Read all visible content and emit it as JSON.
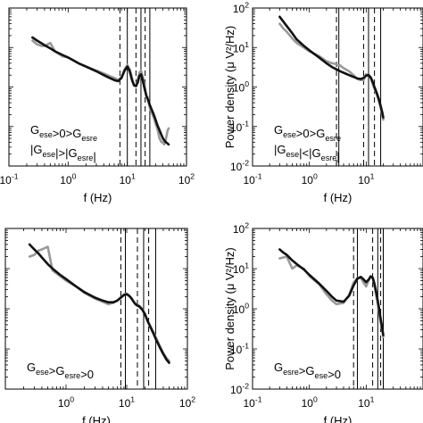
{
  "chart_data": [
    {
      "type": "line",
      "panel": "top-left",
      "scale": "log-log",
      "xlabel": "f (Hz)",
      "ylabel": "",
      "xlim": [
        0.1,
        100
      ],
      "ylim": [
        0.01,
        100
      ],
      "xtick_labels": [
        {
          "value": 0.1,
          "base": "10",
          "exp": "-1"
        },
        {
          "value": 1,
          "base": "10",
          "exp": "0"
        },
        {
          "value": 10,
          "base": "10",
          "exp": "1"
        },
        {
          "value": 100,
          "base": "10",
          "exp": "2"
        }
      ],
      "ytick_labels": [],
      "annotation": [
        "G_{ese}>0>G_{esre}",
        "|G_{ese}|>|G_{esre}|"
      ],
      "vlines_dashed": [
        7.5,
        14,
        20
      ],
      "vlines_solid": [
        10,
        17,
        24
      ],
      "series": [
        {
          "color": "#999999",
          "x": [
            0.25,
            0.3,
            0.35,
            0.4,
            0.5,
            0.6,
            0.8,
            1,
            1.5,
            2,
            3,
            4,
            5,
            6,
            7,
            8,
            9,
            10,
            11,
            12,
            13,
            14,
            15,
            16,
            17,
            18,
            19,
            20,
            21,
            22,
            23,
            24,
            26,
            28,
            30,
            32,
            35,
            38,
            40,
            42,
            45,
            48,
            50
          ],
          "y": [
            15,
            12,
            11,
            11,
            13,
            8,
            6,
            5.6,
            4,
            3.3,
            2.6,
            2.2,
            1.9,
            1.7,
            1.5,
            1.8,
            2.8,
            3.6,
            2.8,
            1.7,
            1.1,
            1.1,
            1.5,
            2.3,
            2.6,
            2.0,
            1.4,
            0.9,
            0.6,
            0.55,
            0.4,
            0.3,
            0.22,
            0.17,
            0.12,
            0.09,
            0.05,
            0.04,
            0.04,
            0.035,
            0.05,
            0.08,
            0.09
          ]
        },
        {
          "color": "#111111",
          "x": [
            0.25,
            0.3,
            0.35,
            0.4,
            0.5,
            0.6,
            0.8,
            1,
            1.5,
            2,
            3,
            4,
            5,
            6,
            7,
            8,
            9,
            10,
            11,
            12,
            13,
            14,
            15,
            16,
            17,
            18,
            19,
            20,
            21,
            22,
            23,
            24,
            26,
            28,
            30,
            32,
            35,
            38,
            40,
            42,
            45,
            48,
            50
          ],
          "y": [
            18,
            15,
            13,
            11.5,
            9.5,
            8,
            6.5,
            5.6,
            4,
            3.3,
            2.5,
            2.0,
            1.7,
            1.5,
            1.4,
            1.7,
            2.6,
            3.3,
            2.5,
            1.5,
            1.1,
            1.05,
            1.3,
            1.9,
            2.1,
            1.6,
            1.1,
            0.8,
            0.6,
            0.5,
            0.42,
            0.35,
            0.26,
            0.2,
            0.15,
            0.11,
            0.08,
            0.06,
            0.05,
            0.045,
            0.04,
            0.037,
            0.035
          ]
        }
      ]
    },
    {
      "type": "line",
      "panel": "top-right",
      "scale": "log-log",
      "xlabel": "f (Hz)",
      "ylabel": "Power density (μ V²/Hz)",
      "xlim": [
        0.1,
        100
      ],
      "ylim": [
        0.01,
        100
      ],
      "xtick_labels": [
        {
          "value": 0.1,
          "base": "10",
          "exp": "-1"
        },
        {
          "value": 1,
          "base": "10",
          "exp": "0"
        },
        {
          "value": 10,
          "base": "10",
          "exp": "1"
        }
      ],
      "ytick_labels": [
        {
          "value": 100,
          "base": "10",
          "exp": "2"
        },
        {
          "value": 10,
          "base": "10",
          "exp": "1"
        },
        {
          "value": 1,
          "base": "10",
          "exp": "0"
        },
        {
          "value": 0.1,
          "base": "10",
          "exp": "-1"
        },
        {
          "value": 0.01,
          "base": "10",
          "exp": "-2"
        }
      ],
      "annotation": [
        "G_{ese}>0>G_{esre}",
        "|G_{ese}|<|G_{esre}|"
      ],
      "vlines_dashed": [
        3,
        9,
        14
      ],
      "vlines_solid": [
        3.3,
        11,
        18
      ],
      "series": [
        {
          "color": "#999999",
          "x": [
            0.3,
            0.35,
            0.4,
            0.5,
            0.6,
            0.8,
            1,
            1.5,
            2,
            2.5,
            3,
            3.5,
            4,
            5,
            6,
            7,
            8,
            9,
            10,
            11,
            12,
            13,
            14,
            15,
            16,
            17,
            18,
            19,
            20
          ],
          "y": [
            40,
            30,
            25,
            17,
            13,
            10,
            8,
            6,
            4.5,
            4.0,
            3.8,
            3.5,
            3.0,
            2.5,
            2.0,
            1.6,
            1.5,
            1.5,
            2.1,
            2.0,
            1.7,
            1.2,
            0.9,
            0.7,
            0.55,
            0.4,
            0.3,
            0.2,
            0.15
          ]
        },
        {
          "color": "#111111",
          "x": [
            0.3,
            0.35,
            0.4,
            0.5,
            0.6,
            0.8,
            1,
            1.5,
            2,
            2.5,
            3,
            3.5,
            4,
            5,
            6,
            7,
            8,
            9,
            10,
            11,
            12,
            13,
            14,
            15,
            16,
            17,
            18,
            19,
            20
          ],
          "y": [
            60,
            45,
            35,
            23,
            16,
            11,
            8.5,
            5.5,
            4.0,
            3.2,
            2.8,
            2.5,
            2.3,
            2.0,
            1.8,
            1.65,
            1.6,
            1.7,
            1.95,
            2.0,
            1.75,
            1.35,
            1.0,
            0.78,
            0.6,
            0.45,
            0.33,
            0.24,
            0.17
          ]
        }
      ]
    },
    {
      "type": "line",
      "panel": "bottom-left",
      "scale": "log-log",
      "xlabel": "f (Hz)",
      "ylabel": "",
      "xlim": [
        0.1,
        100
      ],
      "ylim": [
        0.01,
        100
      ],
      "xtick_labels": [
        {
          "value": 1,
          "base": "10",
          "exp": "0"
        },
        {
          "value": 10,
          "base": "10",
          "exp": "1"
        },
        {
          "value": 100,
          "base": "10",
          "exp": "2"
        }
      ],
      "ytick_labels": [],
      "annotation": [
        "G_{ese}>G_{esre}>0"
      ],
      "vlines_dashed": [
        8,
        15,
        23
      ],
      "vlines_solid": [
        9.5,
        19,
        30
      ],
      "series": [
        {
          "color": "#999999",
          "x": [
            0.25,
            0.3,
            0.35,
            0.4,
            0.5,
            0.6,
            0.8,
            1,
            1.5,
            2,
            3,
            4,
            5,
            6,
            7,
            8,
            9,
            10,
            11,
            12,
            13,
            14,
            15,
            16,
            18,
            20,
            22,
            25,
            28,
            30,
            35,
            40,
            45,
            50
          ],
          "y": [
            20,
            22,
            28,
            30,
            35,
            9,
            6.5,
            5,
            3.5,
            2.5,
            1.8,
            1.5,
            1.3,
            1.4,
            1.6,
            1.9,
            2.3,
            2.4,
            2.1,
            1.8,
            1.5,
            1.3,
            1.2,
            1.2,
            1.0,
            0.75,
            0.5,
            0.35,
            0.25,
            0.2,
            0.12,
            0.08,
            0.06,
            0.05
          ]
        },
        {
          "color": "#111111",
          "x": [
            0.25,
            0.3,
            0.35,
            0.4,
            0.5,
            0.6,
            0.8,
            1,
            1.5,
            2,
            3,
            4,
            5,
            6,
            7,
            8,
            9,
            10,
            11,
            12,
            13,
            14,
            15,
            16,
            18,
            20,
            22,
            25,
            28,
            30,
            35,
            40,
            45,
            50
          ],
          "y": [
            40,
            30,
            24,
            19,
            13,
            10,
            7,
            5.5,
            3.5,
            2.6,
            1.9,
            1.6,
            1.45,
            1.45,
            1.6,
            1.9,
            2.2,
            2.3,
            2.1,
            1.8,
            1.5,
            1.3,
            1.2,
            1.15,
            0.95,
            0.72,
            0.5,
            0.33,
            0.23,
            0.18,
            0.11,
            0.075,
            0.055,
            0.045
          ]
        }
      ]
    },
    {
      "type": "line",
      "panel": "bottom-right",
      "scale": "log-log",
      "xlabel": "f (Hz)",
      "ylabel": "Power density (μ V²/Hz)",
      "xlim": [
        0.1,
        100
      ],
      "ylim": [
        0.01,
        100
      ],
      "xtick_labels": [
        {
          "value": 0.1,
          "base": "10",
          "exp": "-1"
        },
        {
          "value": 1,
          "base": "10",
          "exp": "0"
        },
        {
          "value": 10,
          "base": "10",
          "exp": "1"
        }
      ],
      "ytick_labels": [
        {
          "value": 100,
          "base": "10",
          "exp": "2"
        },
        {
          "value": 10,
          "base": "10",
          "exp": "1"
        },
        {
          "value": 1,
          "base": "10",
          "exp": "0"
        },
        {
          "value": 0.1,
          "base": "10",
          "exp": "-1"
        },
        {
          "value": 0.01,
          "base": "10",
          "exp": "-2"
        }
      ],
      "annotation": [
        "G_{esre}>G_{ese}>0"
      ],
      "vlines_dashed": [
        6,
        13,
        18
      ],
      "vlines_solid": [
        7,
        16,
        20
      ],
      "series": [
        {
          "color": "#999999",
          "x": [
            0.3,
            0.35,
            0.4,
            0.5,
            0.6,
            0.8,
            1,
            1.5,
            2,
            2.5,
            3,
            4,
            5,
            6,
            7,
            8,
            9,
            10,
            11,
            12,
            13,
            14,
            15,
            16,
            17,
            18,
            19,
            20
          ],
          "y": [
            18,
            19,
            20,
            10,
            12,
            10,
            6.5,
            4,
            2.3,
            1.6,
            1.3,
            1.4,
            2.2,
            4.5,
            5.8,
            6.0,
            4.5,
            3.6,
            5.0,
            6.5,
            5.8,
            3.8,
            2.2,
            1.3,
            0.75,
            0.45,
            0.3,
            0.2
          ]
        },
        {
          "color": "#111111",
          "x": [
            0.3,
            0.35,
            0.4,
            0.5,
            0.6,
            0.8,
            1,
            1.5,
            2,
            2.5,
            3,
            4,
            5,
            6,
            7,
            8,
            9,
            10,
            11,
            12,
            13,
            14,
            15,
            16,
            17,
            18,
            19,
            20
          ],
          "y": [
            30,
            25,
            22,
            16,
            13,
            9.5,
            7.0,
            4.2,
            2.8,
            2.0,
            1.6,
            1.5,
            2.1,
            3.8,
            5.6,
            6.2,
            5.4,
            4.6,
            5.3,
            6.4,
            6.0,
            4.2,
            2.6,
            1.6,
            0.95,
            0.55,
            0.35,
            0.22
          ]
        }
      ]
    }
  ]
}
